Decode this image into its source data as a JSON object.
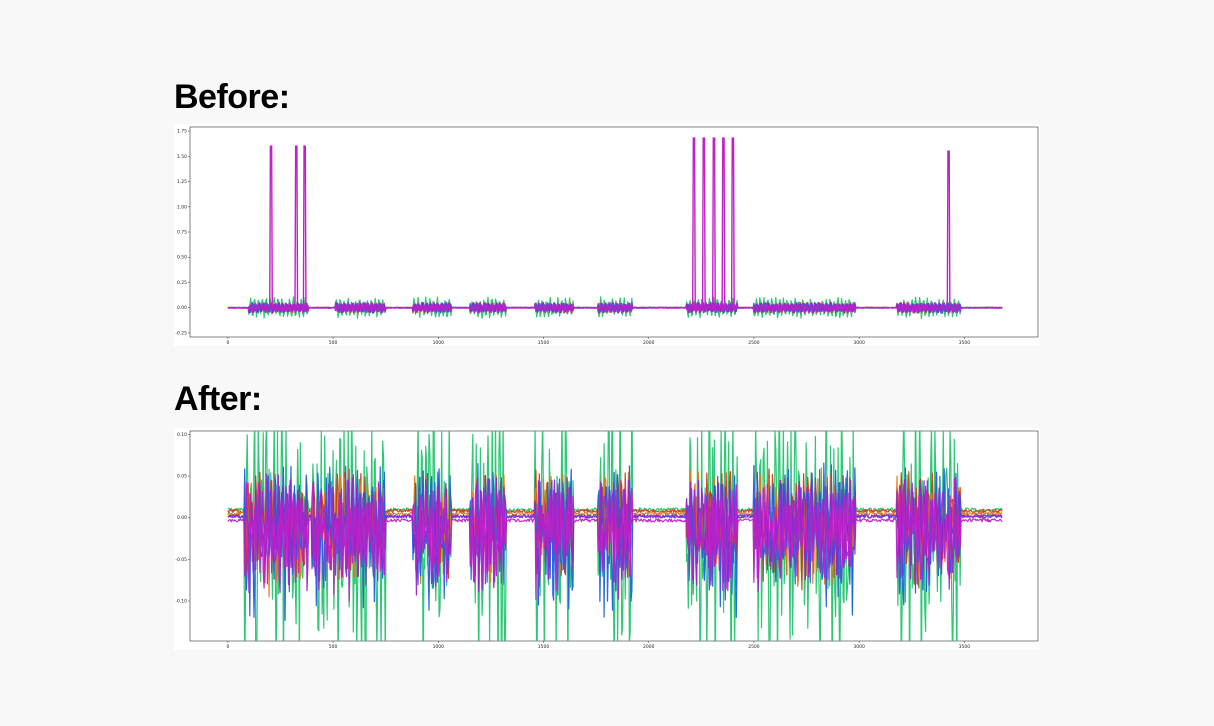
{
  "figure": {
    "before_label": "Before:",
    "after_label": "After:"
  },
  "colors": {
    "page_background": "#f8f8f8",
    "panel_background": "#ffffff",
    "series": [
      "#1f5fe0",
      "#d03a12",
      "#e07a10",
      "#9a22cc",
      "#22c46e",
      "#c020c8"
    ]
  },
  "chart_data": [
    {
      "type": "line",
      "panel": "before",
      "title": "",
      "xlabel": "",
      "ylabel": "",
      "xlim": [
        -180,
        3850
      ],
      "ylim": [
        -0.29,
        1.79
      ],
      "xticks": [
        0,
        500,
        1000,
        1500,
        2000,
        2500,
        3000,
        3500
      ],
      "yticks": [
        -0.25,
        0.0,
        0.25,
        0.5,
        0.75,
        1.0,
        1.25,
        1.5,
        1.75
      ],
      "ytick_labels": [
        "-0.25",
        "0.00",
        "0.25",
        "0.50",
        "0.75",
        "1.00",
        "1.25",
        "1.50",
        "1.75"
      ],
      "n_points": 3680,
      "grid": false,
      "series_count": 6,
      "spikes_x": [
        205,
        325,
        365,
        2215,
        2262,
        2310,
        2355,
        2400,
        3425
      ],
      "spikes_y": [
        1.6,
        1.6,
        1.6,
        1.68,
        1.68,
        1.68,
        1.68,
        1.68,
        1.55
      ],
      "active_segments": [
        [
          100,
          380
        ],
        [
          510,
          750
        ],
        [
          880,
          1060
        ],
        [
          1150,
          1320
        ],
        [
          1460,
          1640
        ],
        [
          1760,
          1920
        ],
        [
          2180,
          2420
        ],
        [
          2500,
          2980
        ],
        [
          3180,
          3480
        ]
      ]
    },
    {
      "type": "line",
      "panel": "after",
      "title": "",
      "xlabel": "",
      "ylabel": "",
      "xlim": [
        -180,
        3850
      ],
      "ylim": [
        -0.148,
        0.104
      ],
      "xticks": [
        0,
        500,
        1000,
        1500,
        2000,
        2500,
        3000,
        3500
      ],
      "yticks": [
        -0.1,
        -0.05,
        0.0,
        0.05,
        0.1
      ],
      "ytick_labels": [
        "-0.10",
        "-0.05",
        "0.00",
        "0.05",
        "0.10"
      ],
      "n_points": 3680,
      "grid": false,
      "series_count": 6,
      "active_segments": [
        [
          80,
          380
        ],
        [
          400,
          750
        ],
        [
          880,
          1060
        ],
        [
          1150,
          1320
        ],
        [
          1460,
          1640
        ],
        [
          1760,
          1920
        ],
        [
          2180,
          2420
        ],
        [
          2500,
          2980
        ],
        [
          3180,
          3480
        ]
      ]
    }
  ]
}
